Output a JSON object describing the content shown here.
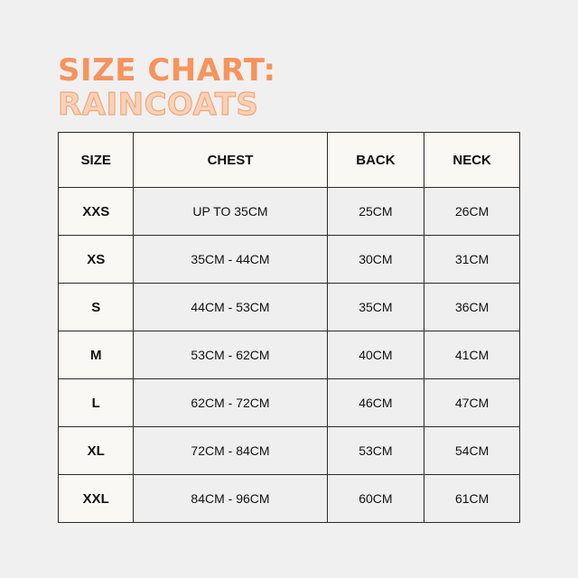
{
  "title": {
    "line1": "SIZE CHART:",
    "line2": "RAINCOATS"
  },
  "colors": {
    "title": "#f7935c",
    "outline": "#f4a77a",
    "background": "#f0f0f0"
  },
  "table": {
    "headers": [
      "SIZE",
      "CHEST",
      "BACK",
      "NECK"
    ],
    "rows": [
      [
        "XXS",
        "UP TO 35CM",
        "25CM",
        "26CM"
      ],
      [
        "XS",
        "35CM - 44CM",
        "30CM",
        "31CM"
      ],
      [
        "S",
        "44CM - 53CM",
        "35CM",
        "36CM"
      ],
      [
        "M",
        "53CM - 62CM",
        "40CM",
        "41CM"
      ],
      [
        "L",
        "62CM - 72CM",
        "46CM",
        "47CM"
      ],
      [
        "XL",
        "72CM - 84CM",
        "53CM",
        "54CM"
      ],
      [
        "XXL",
        "84CM - 96CM",
        "60CM",
        "61CM"
      ]
    ]
  }
}
